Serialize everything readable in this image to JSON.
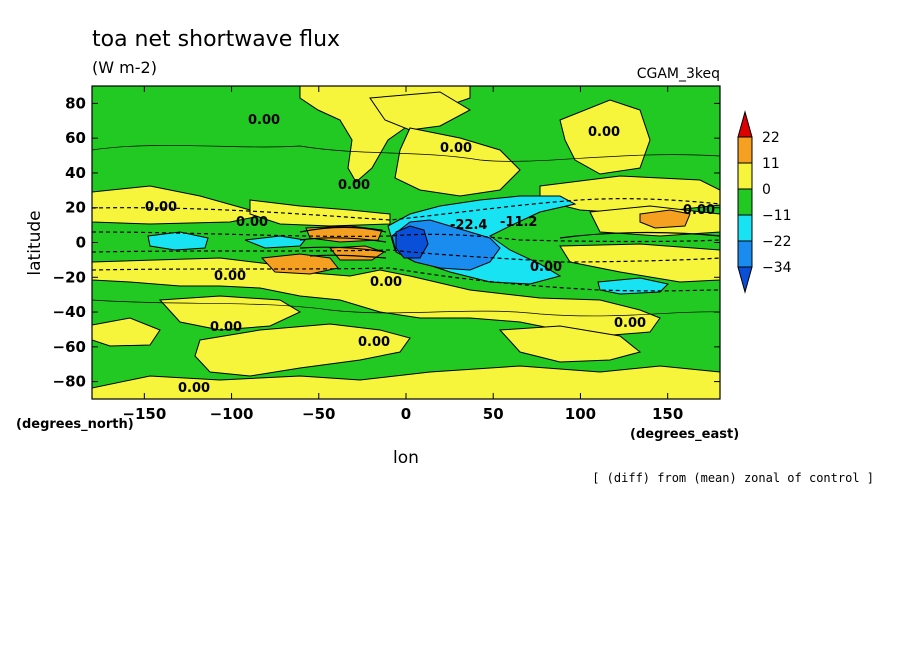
{
  "chart_data": {
    "type": "heatmap",
    "title": "toa net shortwave flux",
    "subtitle": "(W m-2)",
    "dataset_label": "CGAM_3keq",
    "xlabel": "lon",
    "ylabel": "latitude",
    "x_unit_label": "(degrees_east)",
    "y_unit_label": "(degrees_north)",
    "xlim": [
      -180,
      180
    ],
    "ylim": [
      -90,
      90
    ],
    "x_ticks": [
      -150,
      -100,
      -50,
      0,
      50,
      100,
      150
    ],
    "y_ticks": [
      80,
      60,
      40,
      20,
      0,
      -20,
      -40,
      -60,
      -80
    ],
    "contour_labels": [
      "0.00",
      "0.00",
      "0.00",
      "0.00",
      "0.00",
      "0.00",
      "0.00",
      "0.00",
      "0.00",
      "0.00",
      "0.00",
      "0.00",
      "0.00",
      "0.00",
      "-22.4",
      "-11.2"
    ],
    "colorbar": {
      "levels": [
        22,
        11,
        0,
        -11,
        -22,
        -34
      ],
      "colors": [
        "#dd0000",
        "#f5a020",
        "#f7f43c",
        "#22c922",
        "#17e3f3",
        "#1a8cf0",
        "#0a4fd8"
      ]
    },
    "footnote": "[ (diff) from (mean) zonal of control ]"
  }
}
